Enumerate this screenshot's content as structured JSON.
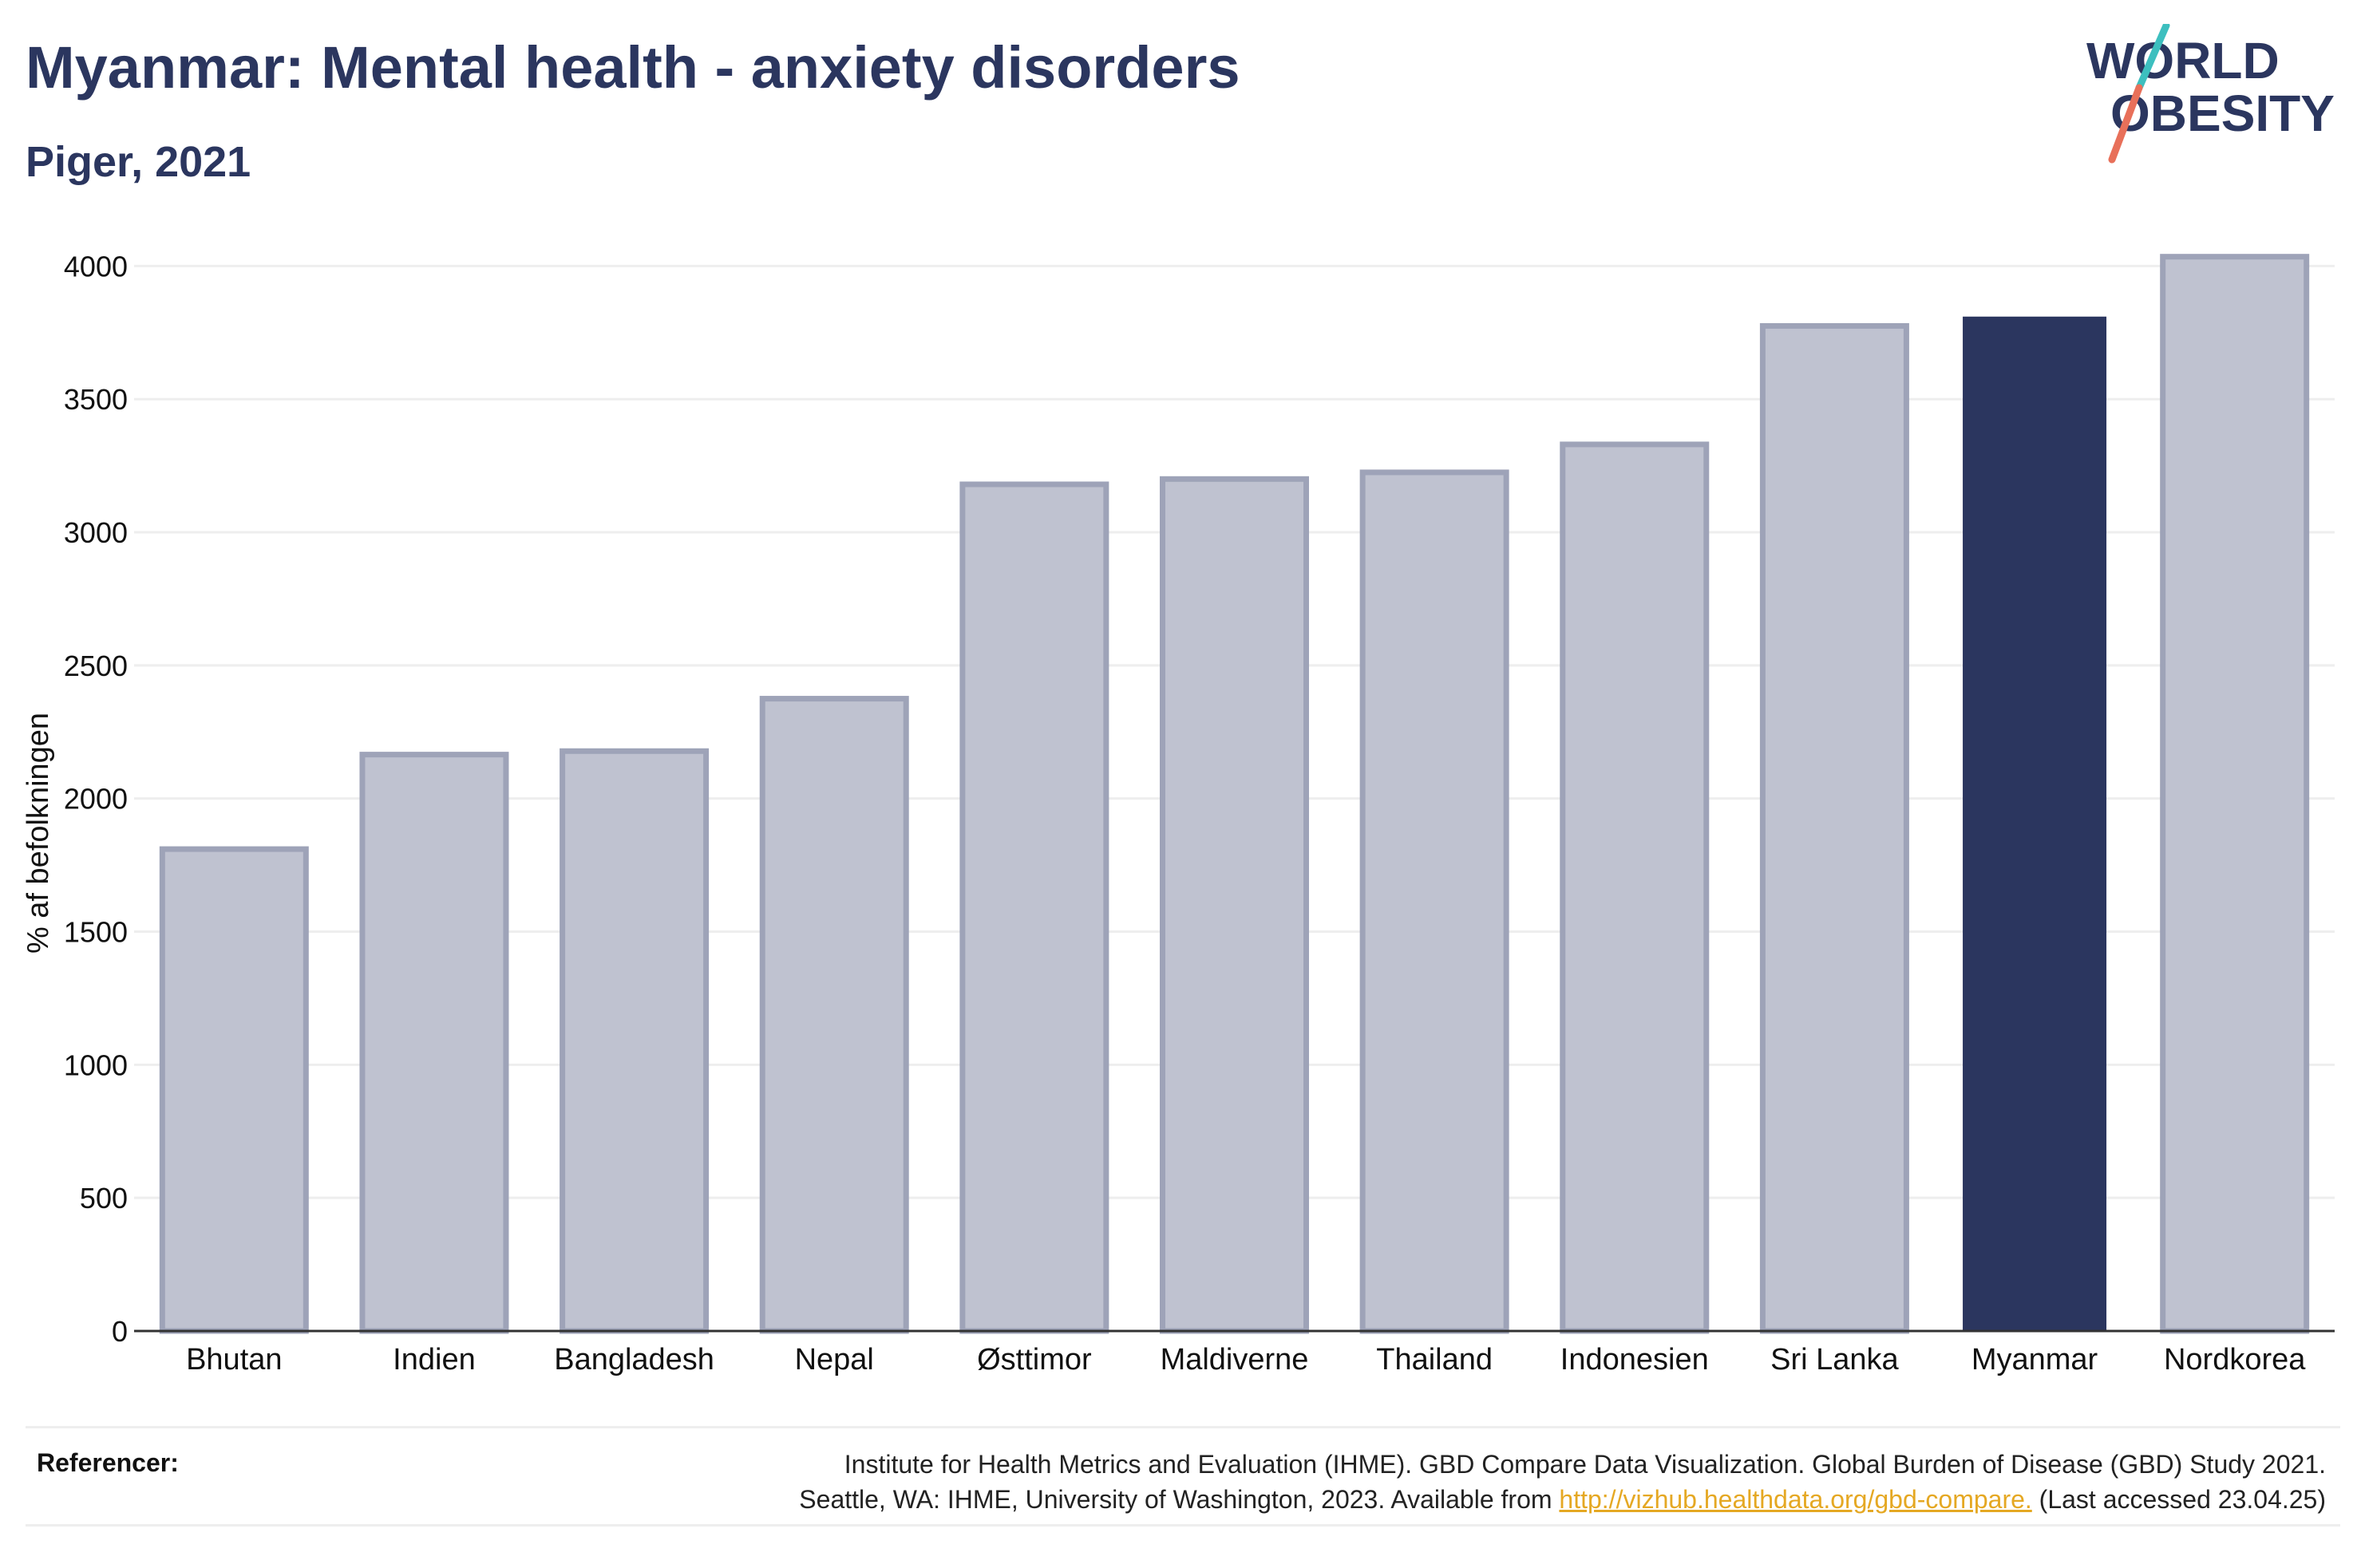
{
  "header": {
    "title": "Myanmar: Mental health - anxiety disorders",
    "subtitle": "Piger, 2021"
  },
  "logo": {
    "line1": "WORLD",
    "line2": "OBESITY",
    "text_color": "#2b365f",
    "slash_top_color": "#3dbfbf",
    "slash_bottom_color": "#e8705a"
  },
  "chart_data": {
    "type": "bar",
    "title": "Myanmar: Mental health - anxiety disorders",
    "subtitle": "Piger, 2021",
    "xlabel": "",
    "ylabel": "% af befolkningen",
    "ylim": [
      0,
      4100
    ],
    "yticks": [
      0,
      500,
      1000,
      1500,
      2000,
      2500,
      3000,
      3500,
      4000
    ],
    "grid": true,
    "categories": [
      "Bhutan",
      "Indien",
      "Bangladesh",
      "Nepal",
      "Østtimor",
      "Maldiverne",
      "Thailand",
      "Indonesien",
      "Sri Lanka",
      "Myanmar",
      "Nordkorea"
    ],
    "values": [
      1810,
      2165,
      2178,
      2375,
      3180,
      3200,
      3225,
      3330,
      3775,
      3810,
      4035
    ],
    "highlight": "Myanmar",
    "colors": {
      "bar": "#bfc2d0",
      "bar_edge": "#9ea3b8",
      "highlight": "#2b365f",
      "grid": "#eeeeee",
      "axis": "#333333"
    }
  },
  "footer": {
    "references_label": "Referencer:",
    "reference_line1": "Institute for Health Metrics and Evaluation (IHME). GBD Compare Data Visualization. Global Burden of Disease (GBD) Study 2021.",
    "reference_line2_prefix": "Seattle, WA: IHME, University of Washington, 2023. Available from ",
    "reference_link": "http://vizhub.healthdata.org/gbd-compare.",
    "reference_line2_suffix": " (Last accessed 23.04.25)"
  }
}
